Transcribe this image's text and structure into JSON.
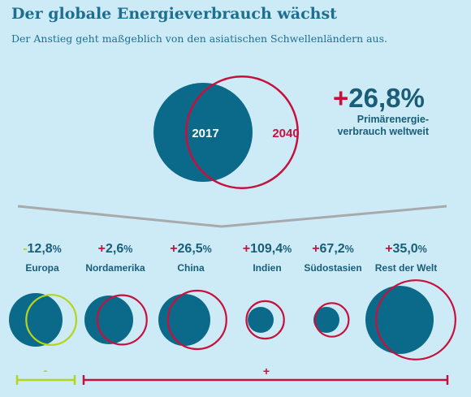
{
  "header": {
    "title": "Der globale Energieverbrauch wächst",
    "subtitle": "Der Anstieg geht maßgeblich von den asiatischen Schwellenländern aus."
  },
  "summary": {
    "circle_2017_label": "2017",
    "circle_2040_label": "2040",
    "change_sign": "+",
    "change_value": "26,8%",
    "change_label_line1": "Primärenergie-",
    "change_label_line2": "verbrauch weltweit"
  },
  "colors": {
    "blue_fill": "#0b6a8a",
    "red_outline": "#c8103d",
    "green_outline": "#b5d41b",
    "grey_line": "#a7a9ab",
    "background": "#cdebf6"
  },
  "brackets": {
    "negative_symbol": "-",
    "positive_symbol": "+"
  },
  "chart_data": {
    "type": "bubble-comparison",
    "title": "Der globale Energieverbrauch wächst",
    "subtitle": "Der Anstieg geht maßgeblich von den asiatischen Schwellenländern aus.",
    "years": [
      "2017",
      "2040"
    ],
    "overall_change_percent": 26.8,
    "categories": [
      {
        "name": "Europa",
        "sign": "-",
        "value": "12,8",
        "unit": "%",
        "change_percent": -12.8
      },
      {
        "name": "Nordamerika",
        "sign": "+",
        "value": "2,6",
        "unit": "%",
        "change_percent": 2.6
      },
      {
        "name": "China",
        "sign": "+",
        "value": "26,5",
        "unit": "%",
        "change_percent": 26.5
      },
      {
        "name": "Indien",
        "sign": "+",
        "value": "109,4",
        "unit": "%",
        "change_percent": 109.4
      },
      {
        "name": "Südostasien",
        "sign": "+",
        "value": "67,2",
        "unit": "%",
        "change_percent": 67.2
      },
      {
        "name": "Rest der Welt",
        "sign": "+",
        "value": "35,0",
        "unit": "%",
        "change_percent": 35.0
      }
    ]
  }
}
